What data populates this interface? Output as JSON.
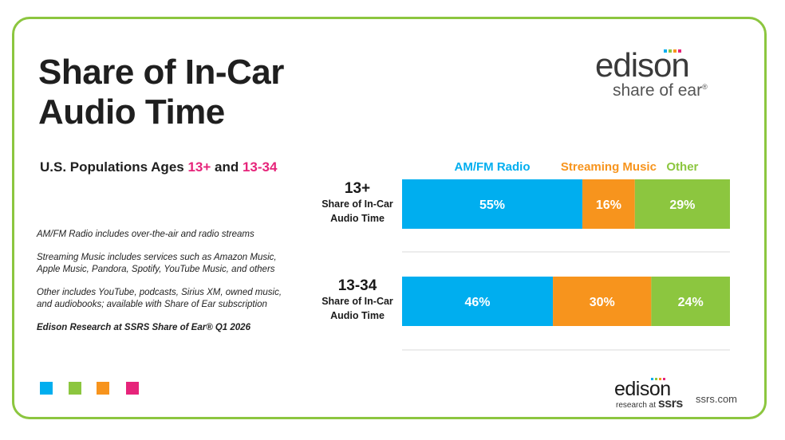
{
  "title_lines": [
    "Share of In-Car",
    "Audio Time"
  ],
  "subtitle": {
    "prefix": "U.S. Populations Ages ",
    "group1": "13+",
    "middle": " and ",
    "group2": "13-34"
  },
  "notes": [
    "AM/FM Radio includes over-the-air and radio streams",
    "Streaming Music includes services such as Amazon Music, Apple Music, Pandora, Spotify, YouTube Music, and others",
    "Other includes YouTube, podcasts, Sirius XM, owned music, and audiobooks; available with Share of Ear subscription"
  ],
  "source": "Edison Research at SSRS Share of Ear® Q1 2026",
  "colors": {
    "blue": "#00aeef",
    "orange": "#f7941d",
    "green": "#8cc63f",
    "pink": "#e6247a",
    "border": "#8cc63f"
  },
  "swatches": [
    "#00aeef",
    "#8cc63f",
    "#f7941d",
    "#e6247a"
  ],
  "logo_top": {
    "word": "edison",
    "sub": "share of ear",
    "reg": "®"
  },
  "logo_bottom": {
    "word": "edison",
    "sub_prefix": "research at",
    "sub_brand": "ssrs",
    "url": "ssrs.com"
  },
  "chart_data": {
    "type": "bar",
    "orientation": "horizontal",
    "stacked": true,
    "title": "Share of In-Car Audio Time",
    "categories": [
      {
        "label": "13+",
        "sublabel": "Share of In-Car Audio Time"
      },
      {
        "label": "13-34",
        "sublabel": "Share of In-Car Audio Time"
      }
    ],
    "series": [
      {
        "name": "AM/FM Radio",
        "color": "#00aeef",
        "values": [
          55,
          46
        ]
      },
      {
        "name": "Streaming Music",
        "color": "#f7941d",
        "values": [
          16,
          30
        ]
      },
      {
        "name": "Other",
        "color": "#8cc63f",
        "values": [
          29,
          24
        ]
      }
    ],
    "unit": "%",
    "xlim": [
      0,
      100
    ],
    "legend": "top"
  }
}
